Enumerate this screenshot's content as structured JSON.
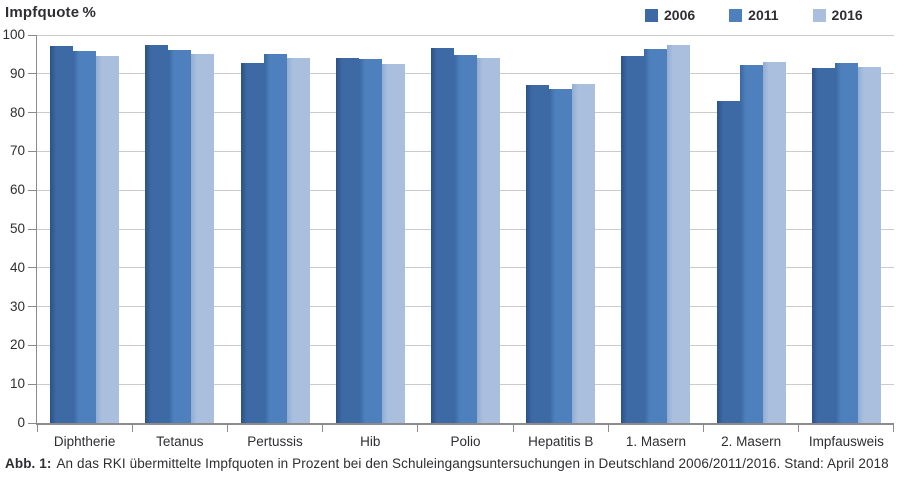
{
  "chart_data": {
    "type": "bar",
    "title": "Impfquote %",
    "categories": [
      "Diphtherie",
      "Tetanus",
      "Pertussis",
      "Hib",
      "Polio",
      "Hepatitis B",
      "1. Masern",
      "2. Masern",
      "Impfausweis"
    ],
    "series": [
      {
        "name": "2006",
        "color": "#3D69A5",
        "color_edge": "#2B5186",
        "values": [
          97.1,
          97.4,
          92.8,
          94.0,
          96.6,
          87.2,
          94.6,
          83.0,
          91.5
        ]
      },
      {
        "name": "2011",
        "color": "#4E80BD",
        "color_edge": "#3A67A2",
        "values": [
          95.8,
          96.1,
          95.1,
          93.8,
          94.9,
          86.0,
          96.5,
          92.2,
          92.7
        ]
      },
      {
        "name": "2016",
        "color": "#AABFDE",
        "color_edge": "#92ADD2",
        "values": [
          94.6,
          95.0,
          94.2,
          92.6,
          94.0,
          87.3,
          97.3,
          93.0,
          91.7
        ]
      }
    ],
    "ylabel": "Impfquote %",
    "xlabel": "",
    "ylim": [
      0,
      100
    ],
    "ytick_step": 10,
    "grid": true,
    "legend_position": "top-right",
    "colors": {
      "grid": "#cbcbcb",
      "axis": "#8b8b8b",
      "text": "#2f2f33"
    }
  },
  "caption": {
    "label": "Abb. 1:",
    "text": "An das RKI übermittelte Impfquoten in Prozent bei den Schuleingangsuntersuchungen in Deutschland 2006/2011/2016. Stand: April 2018"
  }
}
